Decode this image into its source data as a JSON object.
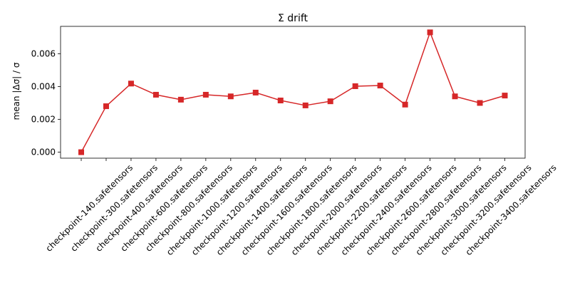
{
  "chart_data": {
    "type": "line",
    "title": "Σ drift",
    "xlabel": "",
    "ylabel": "mean |Δσ| / σ",
    "categories": [
      "checkpoint-140.safetensors",
      "checkpoint-300.safetensors",
      "checkpoint-400.safetensors",
      "checkpoint-600.safetensors",
      "checkpoint-800.safetensors",
      "checkpoint-1000.safetensors",
      "checkpoint-1200.safetensors",
      "checkpoint-1400.safetensors",
      "checkpoint-1600.safetensors",
      "checkpoint-1800.safetensors",
      "checkpoint-2000.safetensors",
      "checkpoint-2200.safetensors",
      "checkpoint-2400.safetensors",
      "checkpoint-2600.safetensors",
      "checkpoint-2800.safetensors",
      "checkpoint-3000.safetensors",
      "checkpoint-3200.safetensors",
      "checkpoint-3400.safetensors"
    ],
    "series": [
      {
        "values": [
          0.0,
          0.0028,
          0.00418,
          0.0035,
          0.0032,
          0.0035,
          0.0034,
          0.00363,
          0.00315,
          0.00285,
          0.0031,
          0.00402,
          0.00406,
          0.0029,
          0.0073,
          0.0034,
          0.003,
          0.00345
        ],
        "color": "#d62728",
        "marker": "square"
      }
    ],
    "ylim": [
      -0.000365,
      0.007665
    ],
    "yticks": [
      "0.000",
      "0.002",
      "0.004",
      "0.006"
    ],
    "ytick_values": [
      0.0,
      0.002,
      0.004,
      0.006
    ],
    "grid": false,
    "legend": "none"
  }
}
